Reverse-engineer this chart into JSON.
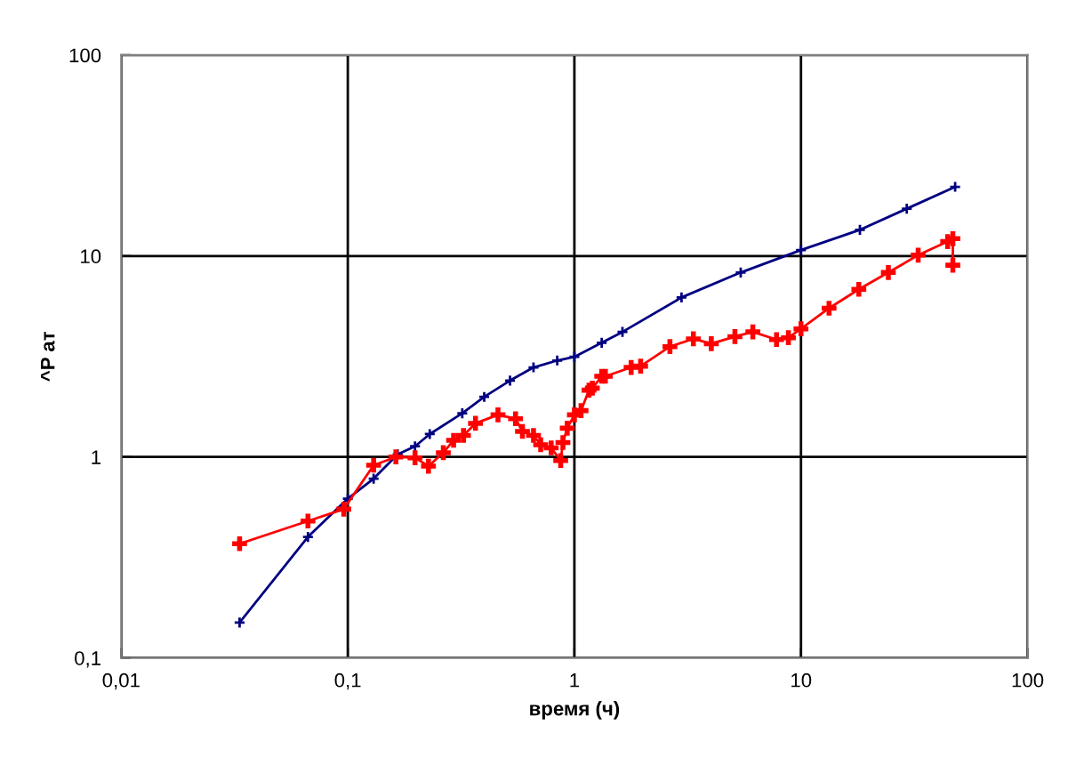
{
  "chart_data": {
    "type": "line",
    "xlabel": "время (ч)",
    "ylabel": "^P ат",
    "log": "xy",
    "grid": true,
    "marker": "cross",
    "line_style": "solid",
    "xlim": [
      0.01,
      100
    ],
    "xticks": [
      {
        "value": 0.01,
        "label": "0,01"
      },
      {
        "value": 0.1,
        "label": "0,1"
      },
      1,
      10,
      100
    ],
    "ylim": [
      0.1,
      100
    ],
    "yticks": [
      {
        "value": 0.1,
        "label": "0,1"
      },
      1,
      10,
      100
    ],
    "series": [
      {
        "color": "#000080",
        "x": [
          0.0333,
          0.0667,
          0.1,
          0.13,
          0.166,
          0.198,
          0.23,
          0.32,
          0.4,
          0.52,
          0.66,
          0.84,
          1.0,
          1.32,
          1.63,
          2.97,
          5.42,
          10,
          18.2,
          29.3,
          47.9
        ],
        "values": [
          0.15,
          0.4,
          0.62,
          0.78,
          1.03,
          1.13,
          1.3,
          1.65,
          1.99,
          2.4,
          2.79,
          3.02,
          3.15,
          3.7,
          4.19,
          6.22,
          8.28,
          10.7,
          13.5,
          17.2,
          22.1
        ]
      },
      {
        "color": "#ff0000",
        "x": [
          0.0333,
          0.0667,
          0.096,
          0.13,
          0.163,
          0.198,
          0.227,
          0.264,
          0.293,
          0.324,
          0.366,
          0.46,
          0.55,
          0.59,
          0.66,
          0.71,
          0.79,
          0.87,
          0.89,
          0.93,
          1.0,
          1.07,
          1.16,
          1.2,
          1.32,
          1.37,
          1.78,
          1.96,
          2.64,
          3.35,
          4.02,
          5.11,
          6.13,
          7.8,
          8.8,
          10,
          13.3,
          18,
          24.3,
          32.9,
          44.4,
          46.8,
          46.8
        ],
        "values": [
          0.37,
          0.48,
          0.55,
          0.91,
          1.0,
          0.99,
          0.9,
          1.05,
          1.21,
          1.28,
          1.47,
          1.62,
          1.55,
          1.34,
          1.28,
          1.15,
          1.11,
          0.96,
          1.18,
          1.39,
          1.62,
          1.7,
          2.15,
          2.2,
          2.52,
          2.52,
          2.79,
          2.83,
          3.54,
          3.87,
          3.66,
          3.97,
          4.19,
          3.84,
          3.92,
          4.34,
          5.5,
          6.83,
          8.28,
          10.1,
          11.8,
          12.2,
          9.0
        ]
      }
    ]
  }
}
